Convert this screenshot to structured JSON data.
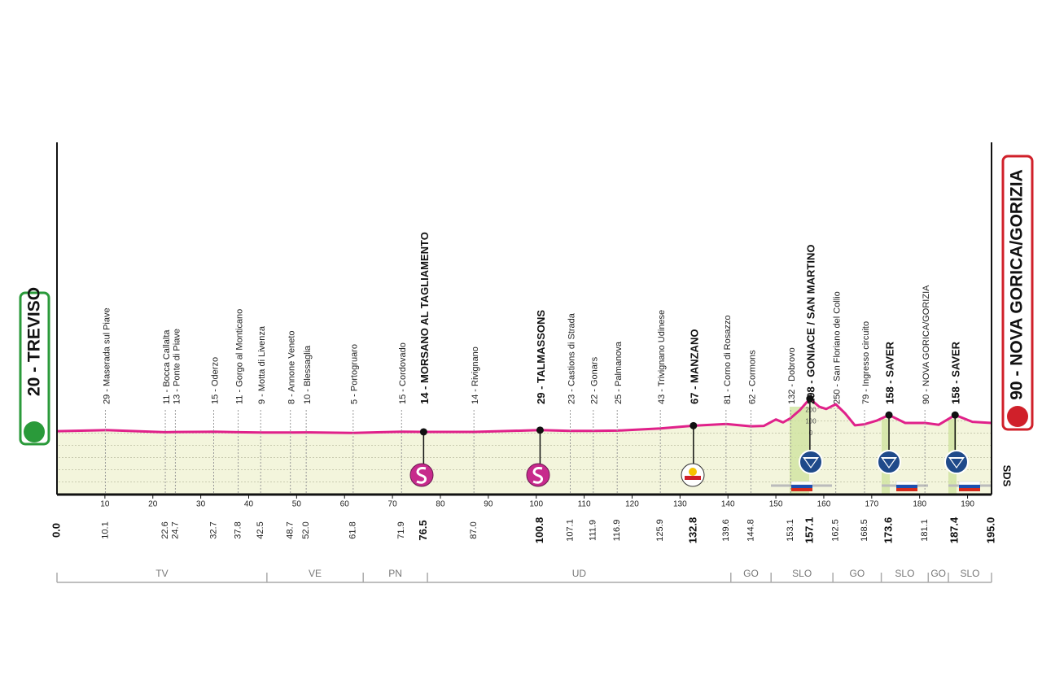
{
  "chart_data": {
    "type": "area",
    "start": {
      "label": "20 - TREVISO",
      "km": {
        "value": 0,
        "label": "0.0"
      }
    },
    "finish": {
      "label": "90 - NOVA GORICA/GORIZIA",
      "km": {
        "value": 195,
        "label": "195.0"
      }
    },
    "side_label": "SDS",
    "color": "#e0218a",
    "x": [
      0,
      10.1,
      22.6,
      24.7,
      32.7,
      37.8,
      42.5,
      48.7,
      52,
      61.8,
      71.9,
      76.5,
      87,
      100.8,
      107.1,
      111.9,
      116.9,
      125.9,
      132.8,
      139.6,
      144.8,
      147.5,
      150,
      151.5,
      153.1,
      155,
      157.1,
      159,
      160.5,
      162.5,
      164.5,
      166.5,
      168.5,
      171,
      173.6,
      177,
      181.1,
      184,
      187.4,
      191,
      195
    ],
    "values": [
      20,
      29,
      11,
      13,
      15,
      11,
      9,
      8,
      10,
      5,
      15,
      14,
      14,
      29,
      23,
      22,
      25,
      43,
      67,
      81,
      62,
      65,
      120,
      95,
      132,
      200,
      298,
      230,
      210,
      250,
      170,
      70,
      79,
      110,
      158,
      90,
      90,
      75,
      158,
      100,
      90
    ],
    "xlim": [
      0,
      195
    ],
    "xticks": [
      10,
      20,
      30,
      40,
      50,
      60,
      70,
      80,
      90,
      100,
      110,
      120,
      130,
      140,
      150,
      160,
      170,
      180,
      190
    ],
    "ylim": [
      0,
      500
    ],
    "yticks": [
      0,
      100,
      200
    ],
    "waypoints": [
      {
        "km": 10.1,
        "label": "29 - Maserada sul Piave",
        "bold": false
      },
      {
        "km": 22.6,
        "label": "11 - Bocca Callalta",
        "bold": false
      },
      {
        "km": 24.7,
        "label": "13 - Ponte di Piave",
        "bold": false
      },
      {
        "km": 32.7,
        "label": "15 - Oderzo",
        "bold": false
      },
      {
        "km": 37.8,
        "label": "11 - Gorgo al Monticano",
        "bold": false
      },
      {
        "km": 42.5,
        "label": "9 - Motta di Livenza",
        "bold": false
      },
      {
        "km": 48.7,
        "label": "8 - Annone Veneto",
        "bold": false
      },
      {
        "km": {
          "value": 52,
          "label": "52.0"
        },
        "label": "10 - Blessaglia",
        "bold": false
      },
      {
        "km": 61.8,
        "label": "5 - Portogruaro",
        "bold": false
      },
      {
        "km": 71.9,
        "label": "15 - Cordovado",
        "bold": false
      },
      {
        "km": 76.5,
        "label": "14 - MORSANO AL TAGLIAMENTO",
        "bold": true
      },
      {
        "km": {
          "value": 87,
          "label": "87.0"
        },
        "label": "14 - Rivignano",
        "bold": false
      },
      {
        "km": 100.8,
        "label": "29 - TALMASSONS",
        "bold": true
      },
      {
        "km": 107.1,
        "label": "23 - Castions di Strada",
        "bold": false
      },
      {
        "km": 111.9,
        "label": "22 - Gonars",
        "bold": false
      },
      {
        "km": 116.9,
        "label": "25 - Palmanova",
        "bold": false
      },
      {
        "km": 125.9,
        "label": "43 - Trivignano Udinese",
        "bold": false
      },
      {
        "km": 132.8,
        "label": "67 - MANZANO",
        "bold": true
      },
      {
        "km": 139.6,
        "label": "81 - Corno di Rosazzo",
        "bold": false
      },
      {
        "km": 144.8,
        "label": "62 - Cormons",
        "bold": false
      },
      {
        "km": 153.1,
        "label": "132 - Dobrovo",
        "bold": false
      },
      {
        "km": 157.1,
        "label": "298 - GONIACE / SAN MARTINO",
        "bold": true
      },
      {
        "km": 162.5,
        "label": "250 - San Floriano del Collio",
        "bold": false
      },
      {
        "km": 168.5,
        "label": "79 - Ingresso circuito",
        "bold": false
      },
      {
        "km": 173.6,
        "label": "158 - SAVER",
        "bold": true
      },
      {
        "km": 181.1,
        "label": "90 - NOVA GORICA/GORIZIA",
        "bold": false
      },
      {
        "km": 187.4,
        "label": "158 - SAVER",
        "bold": true
      }
    ],
    "regions": [
      {
        "name": "TV",
        "from": 0,
        "to": 43.8
      },
      {
        "name": "VE",
        "from": 43.8,
        "to": 63.9
      },
      {
        "name": "PN",
        "from": 63.9,
        "to": 77.3
      },
      {
        "name": "UD",
        "from": 77.3,
        "to": 140.6
      },
      {
        "name": "GO",
        "from": 140.6,
        "to": 149
      },
      {
        "name": "SLO",
        "from": 149,
        "to": 161.9
      },
      {
        "name": "GO",
        "from": 161.9,
        "to": 172
      },
      {
        "name": "SLO",
        "from": 172,
        "to": 181.8
      },
      {
        "name": "GO",
        "from": 181.8,
        "to": 186
      },
      {
        "name": "SLO",
        "from": 186,
        "to": 195
      }
    ]
  }
}
